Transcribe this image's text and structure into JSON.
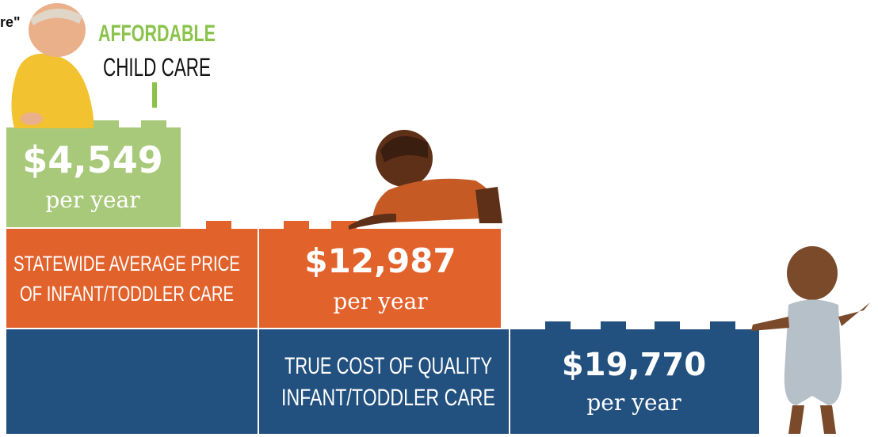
{
  "fragment": "re\"",
  "affordable": {
    "title": "AFFORDABLE",
    "subtitle": "CHILD CARE",
    "amount": "$4,549",
    "unit": "per year"
  },
  "statewide": {
    "line1": "STATEWIDE AVERAGE PRICE",
    "line2": "OF INFANT/TODDLER CARE",
    "amount": "$12,987",
    "unit": "per year"
  },
  "true_cost": {
    "line1": "TRUE COST OF QUALITY",
    "line2": "INFANT/TODDLER CARE",
    "amount": "$19,770",
    "unit": "per year"
  }
}
